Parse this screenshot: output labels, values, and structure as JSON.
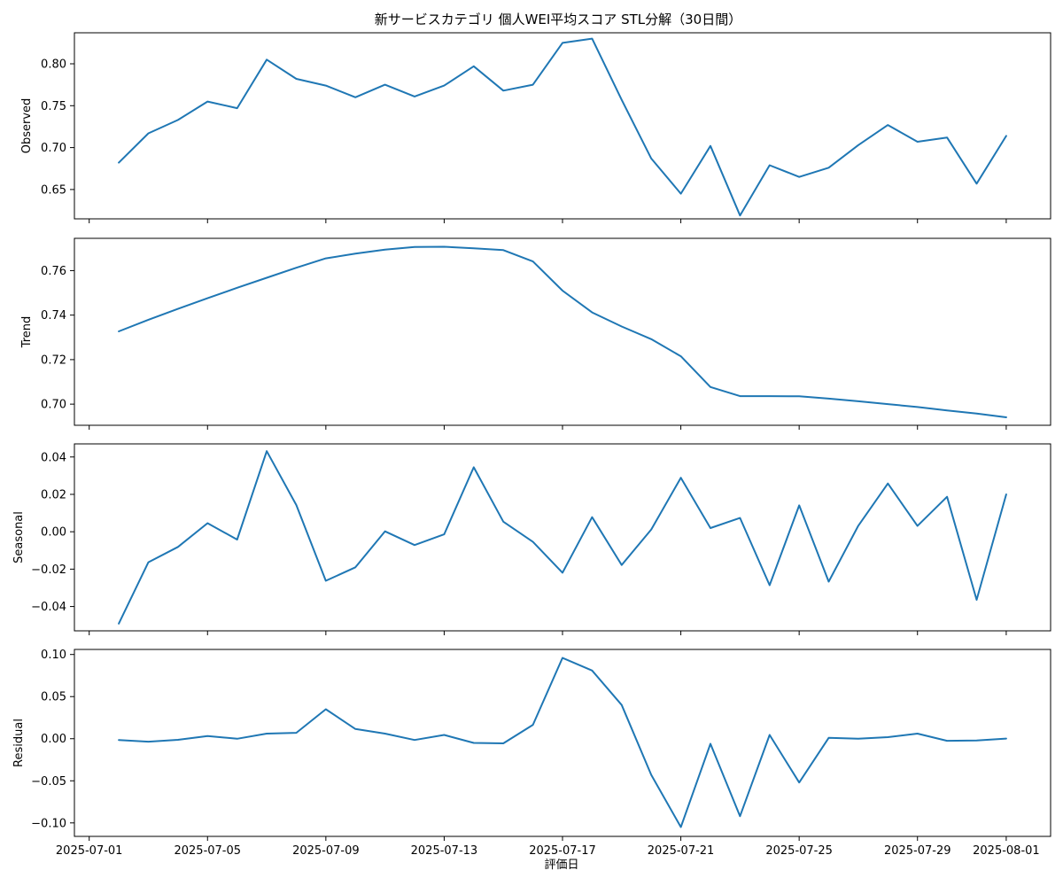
{
  "chart_data": {
    "type": "line",
    "title": "新サービスカテゴリ 個人WEI平均スコア STL分解（30日間）",
    "xlabel": "評価日",
    "x": [
      "2025-07-02",
      "2025-07-03",
      "2025-07-04",
      "2025-07-05",
      "2025-07-06",
      "2025-07-07",
      "2025-07-08",
      "2025-07-09",
      "2025-07-10",
      "2025-07-11",
      "2025-07-12",
      "2025-07-13",
      "2025-07-14",
      "2025-07-15",
      "2025-07-16",
      "2025-07-17",
      "2025-07-18",
      "2025-07-19",
      "2025-07-20",
      "2025-07-21",
      "2025-07-22",
      "2025-07-23",
      "2025-07-24",
      "2025-07-25",
      "2025-07-26",
      "2025-07-27",
      "2025-07-28",
      "2025-07-29",
      "2025-07-30",
      "2025-07-31",
      "2025-08-01"
    ],
    "xticks": [
      "2025-07-01",
      "2025-07-05",
      "2025-07-09",
      "2025-07-13",
      "2025-07-17",
      "2025-07-21",
      "2025-07-25",
      "2025-07-29",
      "2025-08-01"
    ],
    "xlim": [
      "2025-06-30T12:00",
      "2025-08-02T12:00"
    ],
    "color": "#1f77b4",
    "panels": [
      {
        "ylabel": "Observed",
        "ylim": [
          0.615,
          0.837
        ],
        "yticks": [
          "0.65",
          "0.70",
          "0.75",
          "0.80"
        ],
        "values": [
          0.682,
          0.717,
          0.733,
          0.755,
          0.747,
          0.805,
          0.782,
          0.774,
          0.76,
          0.775,
          0.761,
          0.774,
          0.797,
          0.768,
          0.775,
          0.825,
          0.83,
          0.757,
          0.687,
          0.645,
          0.702,
          0.619,
          0.679,
          0.665,
          0.676,
          0.703,
          0.727,
          0.707,
          0.712,
          0.657,
          0.714
        ]
      },
      {
        "ylabel": "Trend",
        "ylim": [
          0.6905,
          0.7745
        ],
        "yticks": [
          "0.70",
          "0.72",
          "0.74",
          "0.76"
        ],
        "values": [
          0.7327,
          0.7379,
          0.7428,
          0.7476,
          0.7523,
          0.7568,
          0.7613,
          0.7655,
          0.7676,
          0.7694,
          0.7706,
          0.7707,
          0.77,
          0.7692,
          0.7641,
          0.751,
          0.7412,
          0.7349,
          0.7292,
          0.7215,
          0.7077,
          0.7036,
          0.7036,
          0.7035,
          0.7025,
          0.7013,
          0.7,
          0.6987,
          0.6972,
          0.6958,
          0.6941
        ]
      },
      {
        "ylabel": "Seasonal",
        "ylim": [
          -0.053,
          0.047
        ],
        "yticks": [
          "−0.04",
          "−0.02",
          "0.00",
          "0.02",
          "0.04"
        ],
        "values": [
          -0.0491,
          -0.0163,
          -0.0081,
          0.0046,
          -0.0042,
          0.0431,
          0.0143,
          -0.0262,
          -0.019,
          0.0002,
          -0.0071,
          -0.0014,
          0.0345,
          0.0054,
          -0.0054,
          -0.0219,
          0.0078,
          -0.0178,
          0.0012,
          0.0289,
          0.002,
          0.0074,
          -0.0286,
          0.0141,
          -0.0267,
          0.0032,
          0.0258,
          0.0031,
          0.0187,
          -0.0364,
          0.02
        ]
      },
      {
        "ylabel": "Residual",
        "ylim": [
          -0.116,
          0.106
        ],
        "yticks": [
          "−0.10",
          "−0.05",
          "0.00",
          "0.05",
          "0.10"
        ],
        "values": [
          -0.0015,
          -0.0035,
          -0.0013,
          0.0032,
          -0.0001,
          0.006,
          0.007,
          0.035,
          0.0115,
          0.006,
          -0.0015,
          0.0045,
          -0.005,
          -0.0055,
          0.0165,
          0.096,
          0.081,
          0.04,
          -0.043,
          -0.105,
          -0.006,
          -0.092,
          0.0045,
          -0.052,
          0.001,
          0.0,
          0.0018,
          0.006,
          -0.0025,
          -0.0022,
          0.0002
        ]
      }
    ]
  }
}
